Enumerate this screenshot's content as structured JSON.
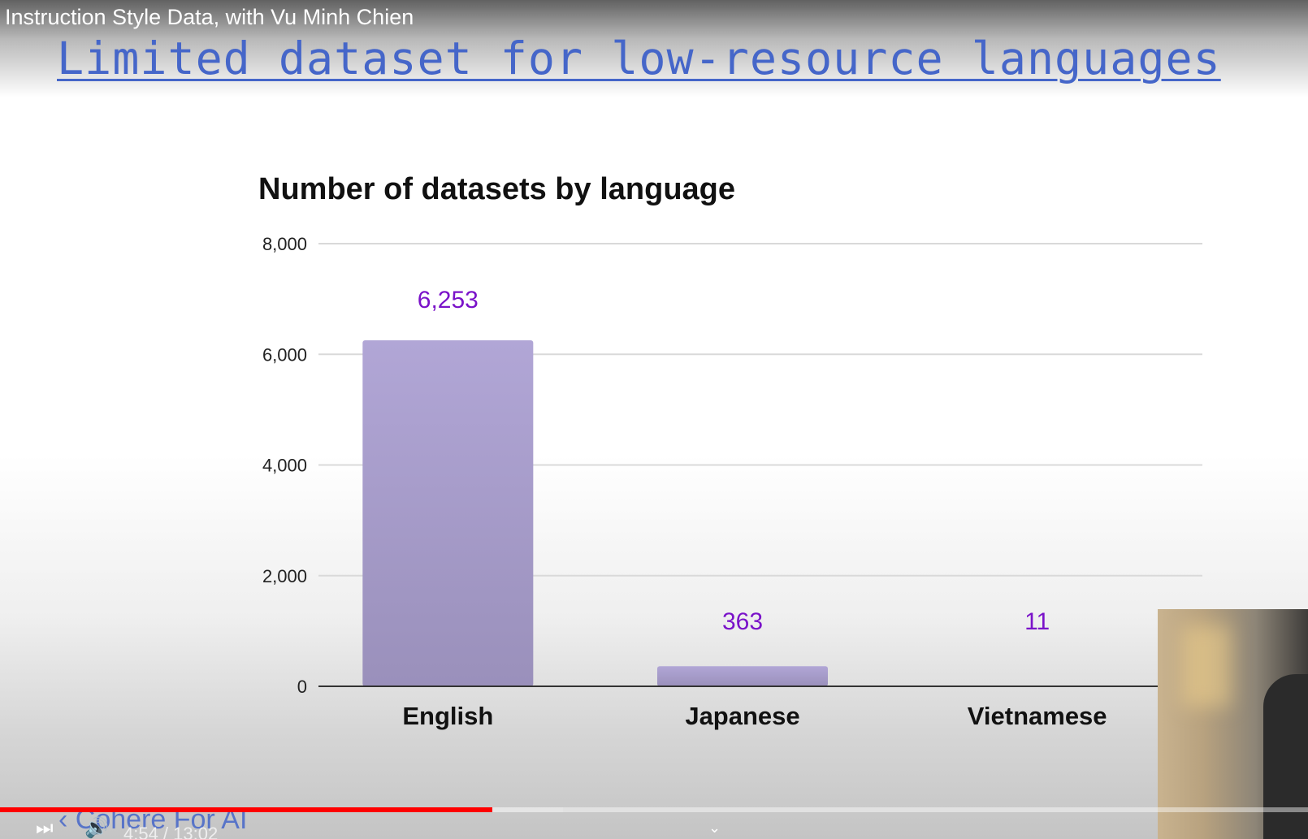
{
  "video": {
    "title": "Instruction Style Data, with Vu Minh Chien",
    "current_time": "4:54 / 13:02",
    "progress": 0.3765,
    "buffered": 0.4304,
    "controls": {
      "next_icon": "next-icon",
      "volume_icon": "volume-icon",
      "chevron_icon": "chevron-down-icon"
    }
  },
  "slide": {
    "heading": "Limited dataset for low-resource languages",
    "watermark": "‹ Cohere For AI"
  },
  "chart_data": {
    "type": "bar",
    "title": "Number of datasets by language",
    "categories": [
      "English",
      "Japanese",
      "Vietnamese"
    ],
    "values": [
      6253,
      363,
      11
    ],
    "data_labels": [
      "6,253",
      "363",
      "11"
    ],
    "ylim": [
      0,
      8000
    ],
    "yticks": [
      0,
      2000,
      4000,
      6000,
      8000
    ],
    "ytick_labels": [
      "0",
      "2,000",
      "4,000",
      "6,000",
      "8,000"
    ],
    "xlabel": "",
    "ylabel": "",
    "grid": true,
    "colors": {
      "bar": "#b1a6d6",
      "label": "#7a12c9",
      "grid": "#d9d9d9",
      "axis": "#333333"
    }
  }
}
